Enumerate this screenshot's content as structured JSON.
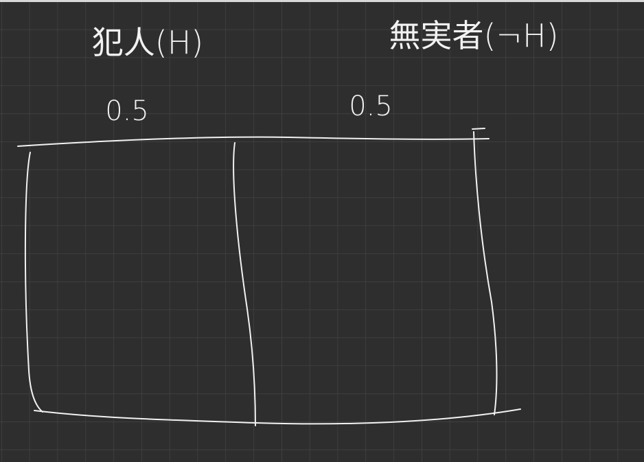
{
  "columns": [
    {
      "label": "犯人(H)",
      "value": "0.5"
    },
    {
      "label": "無実者(¬H)",
      "value": "0.5"
    }
  ]
}
